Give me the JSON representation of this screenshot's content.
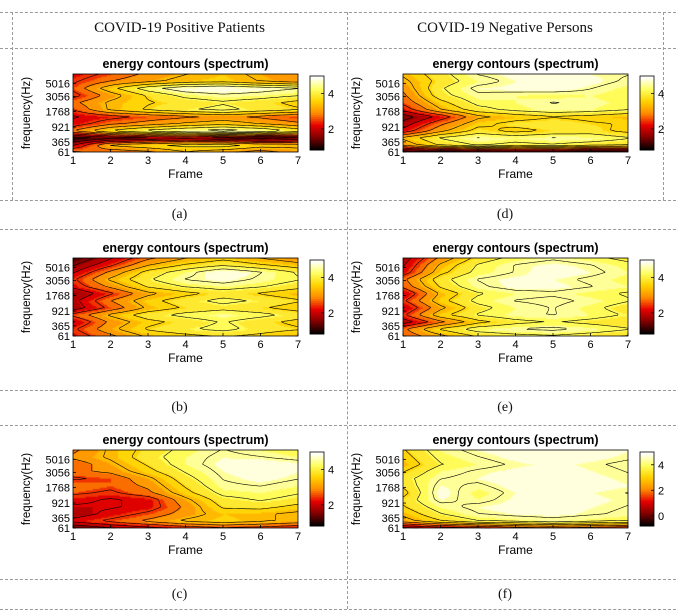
{
  "headers": {
    "positive": "COVID-19 Positive Patients",
    "negative": "COVID-19 Negative Persons"
  },
  "colors": {
    "colormap": [
      "#000000",
      "#800000",
      "#e60000",
      "#ff8c00",
      "#ffd200",
      "#ffff60",
      "#ffffff"
    ],
    "contour_line": "#000000"
  },
  "chart_data": [
    {
      "id": "a",
      "caption": "(a)",
      "type": "heatmap",
      "title": "energy contours (spectrum)",
      "xlabel": "Frame",
      "ylabel": "frequency(Hz)",
      "x_ticks": [
        "1",
        "2",
        "3",
        "4",
        "5",
        "6",
        "7"
      ],
      "xlim": [
        1,
        7
      ],
      "y_ticks": [
        "61",
        "365",
        "921",
        "1768",
        "3056",
        "5016"
      ],
      "colorbar_ticks": [
        {
          "value": 2,
          "label": "2"
        },
        {
          "value": 4,
          "label": "4"
        }
      ],
      "clim": [
        0.8,
        5.0
      ],
      "rows": [
        [
          3.0,
          2.6,
          2.8,
          3.3,
          3.0,
          2.7,
          3.1
        ],
        [
          2.0,
          3.4,
          3.7,
          3.9,
          4.0,
          3.6,
          3.5
        ],
        [
          1.0,
          1.4,
          1.6,
          1.8,
          1.5,
          1.3,
          1.6
        ],
        [
          2.9,
          3.8,
          4.3,
          4.6,
          4.8,
          4.6,
          4.0
        ],
        [
          2.2,
          2.8,
          3.1,
          3.4,
          3.6,
          3.3,
          3.0
        ],
        [
          2.0,
          2.3,
          2.6,
          2.8,
          3.0,
          2.8,
          2.5
        ],
        [
          2.5,
          3.4,
          3.8,
          4.1,
          4.3,
          4.0,
          3.8
        ],
        [
          2.8,
          3.4,
          3.7,
          3.9,
          4.1,
          3.9,
          3.6
        ],
        [
          2.3,
          3.1,
          3.8,
          4.3,
          4.5,
          4.4,
          4.2
        ],
        [
          2.6,
          3.6,
          4.4,
          4.9,
          5.0,
          4.8,
          4.6
        ],
        [
          2.4,
          2.9,
          3.2,
          3.5,
          3.6,
          3.3,
          3.1
        ],
        [
          2.2,
          2.6,
          3.0,
          3.3,
          3.5,
          3.2,
          2.9
        ]
      ]
    },
    {
      "id": "d",
      "caption": "(d)",
      "type": "heatmap",
      "title": "energy contours (spectrum)",
      "xlabel": "Frame",
      "ylabel": "frequency(Hz)",
      "x_ticks": [
        "1",
        "2",
        "3",
        "4",
        "5",
        "6",
        "7"
      ],
      "xlim": [
        1,
        7
      ],
      "y_ticks": [
        "61",
        "365",
        "921",
        "1768",
        "3056",
        "5016"
      ],
      "colorbar_ticks": [
        {
          "value": 2,
          "label": "2"
        },
        {
          "value": 4,
          "label": "4"
        }
      ],
      "clim": [
        0.8,
        5.0
      ],
      "rows": [
        [
          0.9,
          0.9,
          1.0,
          1.0,
          1.0,
          0.9,
          1.0
        ],
        [
          3.0,
          3.8,
          4.2,
          4.0,
          4.1,
          3.9,
          3.8
        ],
        [
          3.4,
          4.2,
          4.6,
          4.4,
          4.6,
          4.5,
          4.2
        ],
        [
          2.2,
          3.2,
          3.9,
          3.6,
          3.8,
          3.9,
          3.6
        ],
        [
          1.8,
          2.8,
          3.6,
          3.9,
          4.0,
          3.8,
          3.7
        ],
        [
          1.4,
          2.2,
          3.2,
          3.5,
          3.7,
          3.6,
          3.4
        ],
        [
          2.2,
          3.3,
          4.0,
          4.3,
          4.5,
          4.4,
          4.2
        ],
        [
          2.6,
          3.6,
          4.3,
          4.4,
          4.6,
          4.5,
          4.3
        ],
        [
          2.8,
          4.0,
          4.5,
          4.4,
          4.3,
          4.4,
          4.2
        ],
        [
          3.0,
          4.1,
          4.7,
          4.8,
          4.9,
          4.6,
          4.3
        ],
        [
          3.2,
          3.9,
          4.4,
          4.7,
          5.0,
          4.8,
          4.5
        ],
        [
          3.4,
          4.0,
          4.6,
          4.8,
          4.9,
          4.7,
          4.6
        ]
      ]
    },
    {
      "id": "b",
      "caption": "(b)",
      "type": "heatmap",
      "title": "energy contours (spectrum)",
      "xlabel": "Frame",
      "ylabel": "frequency(Hz)",
      "x_ticks": [
        "1",
        "2",
        "3",
        "4",
        "5",
        "6",
        "7"
      ],
      "xlim": [
        1,
        7
      ],
      "y_ticks": [
        "61",
        "365",
        "921",
        "1768",
        "3056",
        "5016"
      ],
      "colorbar_ticks": [
        {
          "value": 2,
          "label": "2"
        },
        {
          "value": 4,
          "label": "4"
        }
      ],
      "clim": [
        0.8,
        5.0
      ],
      "rows": [
        [
          2.2,
          2.8,
          3.4,
          3.6,
          3.8,
          3.6,
          3.3
        ],
        [
          2.4,
          3.2,
          3.8,
          4.1,
          4.3,
          4.0,
          3.8
        ],
        [
          2.0,
          3.0,
          3.6,
          3.9,
          4.2,
          3.9,
          3.6
        ],
        [
          2.6,
          3.4,
          4.0,
          4.3,
          4.5,
          4.3,
          4.0
        ],
        [
          1.8,
          2.6,
          3.4,
          3.8,
          4.0,
          3.8,
          3.5
        ],
        [
          1.9,
          2.9,
          3.6,
          4.0,
          4.3,
          4.1,
          3.8
        ],
        [
          1.6,
          2.4,
          3.2,
          3.6,
          3.9,
          3.7,
          3.4
        ],
        [
          2.2,
          3.0,
          3.8,
          4.2,
          4.4,
          4.2,
          3.9
        ],
        [
          2.4,
          3.4,
          4.1,
          4.6,
          4.8,
          4.5,
          4.2
        ],
        [
          2.0,
          3.0,
          3.9,
          4.4,
          5.0,
          4.6,
          4.1
        ],
        [
          1.6,
          2.4,
          3.3,
          3.8,
          4.1,
          3.8,
          3.5
        ],
        [
          1.2,
          2.0,
          2.8,
          3.3,
          3.6,
          3.3,
          3.0
        ]
      ]
    },
    {
      "id": "e",
      "caption": "(e)",
      "type": "heatmap",
      "title": "energy contours (spectrum)",
      "xlabel": "Frame",
      "ylabel": "frequency(Hz)",
      "x_ticks": [
        "1",
        "2",
        "3",
        "4",
        "5",
        "6",
        "7"
      ],
      "xlim": [
        1,
        7
      ],
      "y_ticks": [
        "61",
        "365",
        "921",
        "1768",
        "3056",
        "5016"
      ],
      "colorbar_ticks": [
        {
          "value": 2,
          "label": "2"
        },
        {
          "value": 4,
          "label": "4"
        }
      ],
      "clim": [
        0.8,
        5.0
      ],
      "rows": [
        [
          2.6,
          3.2,
          3.8,
          4.0,
          4.1,
          3.9,
          3.7
        ],
        [
          2.8,
          3.8,
          4.4,
          4.6,
          4.7,
          4.5,
          4.2
        ],
        [
          1.8,
          2.8,
          3.6,
          4.0,
          4.2,
          4.0,
          3.8
        ],
        [
          2.4,
          3.6,
          4.2,
          4.5,
          4.6,
          4.4,
          4.1
        ],
        [
          2.0,
          3.2,
          4.0,
          4.4,
          4.6,
          4.3,
          3.9
        ],
        [
          2.4,
          3.6,
          4.3,
          4.6,
          4.7,
          4.5,
          4.2
        ],
        [
          2.0,
          3.4,
          4.1,
          4.4,
          4.5,
          4.3,
          4.1
        ],
        [
          2.6,
          3.8,
          4.5,
          4.8,
          4.8,
          4.6,
          4.4
        ],
        [
          2.8,
          4.0,
          4.6,
          4.8,
          4.7,
          4.5,
          4.3
        ],
        [
          2.2,
          3.6,
          4.3,
          4.6,
          4.9,
          4.7,
          4.4
        ],
        [
          2.0,
          3.4,
          4.2,
          4.6,
          4.8,
          4.6,
          4.3
        ],
        [
          1.8,
          3.0,
          3.9,
          4.3,
          4.5,
          4.3,
          4.0
        ]
      ]
    },
    {
      "id": "c",
      "caption": "(c)",
      "type": "heatmap",
      "title": "energy contours (spectrum)",
      "xlabel": "Frame",
      "ylabel": "frequency(Hz)",
      "x_ticks": [
        "1",
        "2",
        "3",
        "4",
        "5",
        "6",
        "7"
      ],
      "xlim": [
        1,
        7
      ],
      "y_ticks": [
        "61",
        "365",
        "921",
        "1768",
        "3056",
        "5016"
      ],
      "colorbar_ticks": [
        {
          "value": 2,
          "label": "2"
        },
        {
          "value": 4,
          "label": "4"
        }
      ],
      "clim": [
        0.8,
        5.0
      ],
      "rows": [
        [
          1.2,
          1.6,
          1.9,
          2.2,
          2.4,
          2.3,
          2.1
        ],
        [
          2.2,
          2.6,
          3.0,
          3.4,
          3.6,
          3.4,
          3.2
        ],
        [
          1.8,
          2.2,
          2.6,
          3.1,
          3.5,
          3.4,
          3.2
        ],
        [
          2.0,
          2.0,
          2.2,
          3.0,
          3.8,
          3.9,
          3.6
        ],
        [
          2.2,
          2.0,
          2.2,
          3.2,
          4.0,
          4.2,
          4.0
        ],
        [
          2.6,
          2.4,
          2.8,
          3.6,
          4.3,
          4.4,
          4.2
        ],
        [
          2.8,
          2.6,
          3.0,
          3.8,
          4.5,
          4.6,
          4.4
        ],
        [
          2.4,
          2.6,
          3.2,
          4.0,
          4.6,
          4.8,
          4.6
        ],
        [
          2.8,
          3.0,
          3.6,
          4.2,
          4.7,
          4.9,
          4.7
        ],
        [
          2.6,
          3.2,
          3.8,
          4.4,
          4.8,
          5.0,
          4.8
        ],
        [
          3.0,
          3.4,
          4.0,
          4.4,
          4.7,
          4.6,
          4.4
        ],
        [
          2.8,
          3.4,
          3.9,
          4.3,
          4.6,
          4.4,
          4.2
        ]
      ]
    },
    {
      "id": "f",
      "caption": "(f)",
      "type": "heatmap",
      "title": "energy contours (spectrum)",
      "xlabel": "Frame",
      "ylabel": "frequency(Hz)",
      "x_ticks": [
        "1",
        "2",
        "3",
        "4",
        "5",
        "6",
        "7"
      ],
      "xlim": [
        1,
        7
      ],
      "y_ticks": [
        "61",
        "365",
        "921",
        "1768",
        "3056",
        "5016"
      ],
      "colorbar_ticks": [
        {
          "value": 0,
          "label": "0"
        },
        {
          "value": 2,
          "label": "2"
        },
        {
          "value": 4,
          "label": "4"
        }
      ],
      "clim": [
        -0.8,
        5.0
      ],
      "rows": [
        [
          0.2,
          0.6,
          0.8,
          1.2,
          1.4,
          1.2,
          1.0
        ],
        [
          2.4,
          3.2,
          3.8,
          4.0,
          4.2,
          4.0,
          3.8
        ],
        [
          2.8,
          3.8,
          4.4,
          4.6,
          4.7,
          4.5,
          4.3
        ],
        [
          3.2,
          4.2,
          4.6,
          4.8,
          4.8,
          4.6,
          4.4
        ],
        [
          3.4,
          4.6,
          4.2,
          4.7,
          4.9,
          4.7,
          4.5
        ],
        [
          3.0,
          4.8,
          4.0,
          4.6,
          4.8,
          4.6,
          4.4
        ],
        [
          3.4,
          4.6,
          4.3,
          4.8,
          5.0,
          4.8,
          4.6
        ],
        [
          3.6,
          4.4,
          4.6,
          4.9,
          4.9,
          4.7,
          4.5
        ],
        [
          3.2,
          4.2,
          4.5,
          4.7,
          4.8,
          4.6,
          4.4
        ],
        [
          2.8,
          3.8,
          4.2,
          4.5,
          4.7,
          4.5,
          4.3
        ],
        [
          3.0,
          4.0,
          4.4,
          4.7,
          4.9,
          4.7,
          4.5
        ],
        [
          3.2,
          4.2,
          4.6,
          4.8,
          5.0,
          4.8,
          4.6
        ]
      ]
    }
  ]
}
